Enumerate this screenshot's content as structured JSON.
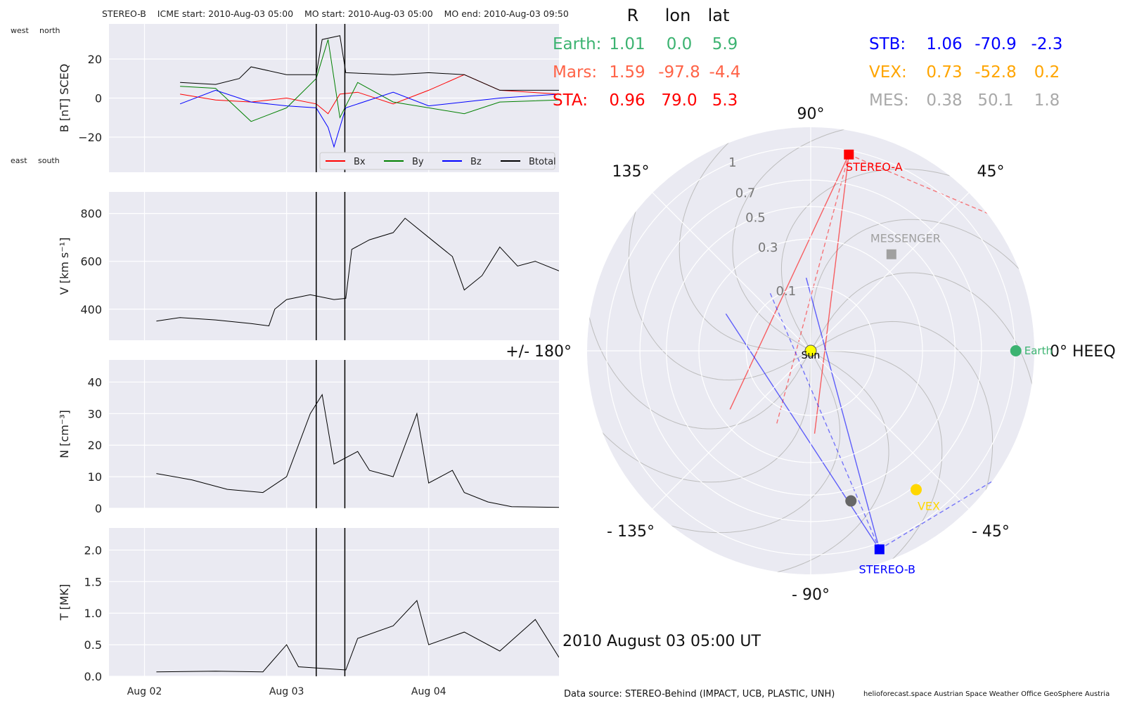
{
  "header": {
    "spacecraft": "STEREO-B",
    "icme_start": "ICME start: 2010-Aug-03 05:00",
    "mo_start": "MO start: 2010-Aug-03 05:00",
    "mo_end": "MO end: 2010-Aug-03 09:50"
  },
  "b_panel_labels": {
    "west": "west",
    "north": "north",
    "east": "east",
    "south": "south"
  },
  "position_table": {
    "columns": [
      "R",
      "lon",
      "lat"
    ],
    "rows": [
      {
        "name": "Earth:",
        "r": "1.01",
        "lon": "0.0",
        "lat": "5.9",
        "color": "#3cb371"
      },
      {
        "name": "Mars:",
        "r": "1.59",
        "lon": "-97.8",
        "lat": "-4.4",
        "color": "#ff6347"
      },
      {
        "name": "STA:",
        "r": "0.96",
        "lon": "79.0",
        "lat": "5.3",
        "color": "#ff0000"
      },
      {
        "name": "STB:",
        "r": "1.06",
        "lon": "-70.9",
        "lat": "-2.3",
        "color": "#0000ff"
      },
      {
        "name": "VEX:",
        "r": "0.73",
        "lon": "-52.8",
        "lat": "0.2",
        "color": "#ffa500"
      },
      {
        "name": "MES:",
        "r": "0.38",
        "lon": "50.1",
        "lat": "1.8",
        "color": "#a9a9a9"
      }
    ]
  },
  "date_label": "2010 August 03  05:00 UT",
  "footer": {
    "source": "Data source: STEREO-Behind (IMPACT, UCB, PLASTIC, UNH)",
    "credits": "helioforecast.space   Austrian Space Weather Office   GeoSphere Austria"
  },
  "chart_data": [
    {
      "type": "line",
      "ylabel": "B [nT] SCEQ",
      "xlim": [
        "2010-08-01 18:00",
        "2010-08-04 22:00"
      ],
      "ylim": [
        -38,
        38
      ],
      "yticks": [
        "20",
        "0",
        "−20"
      ],
      "ytick_values": [
        20,
        0,
        -20
      ],
      "legend": "bottom-right",
      "series": [
        {
          "name": "Bx",
          "color": "#ff0000",
          "points": [
            [
              "2010-08-02 06:00",
              2
            ],
            [
              "2010-08-02 12:00",
              -1
            ],
            [
              "2010-08-02 18:00",
              -2
            ],
            [
              "2010-08-03 00:00",
              0
            ],
            [
              "2010-08-03 05:00",
              -3
            ],
            [
              "2010-08-03 07:00",
              -8
            ],
            [
              "2010-08-03 09:00",
              2
            ],
            [
              "2010-08-03 12:00",
              3
            ],
            [
              "2010-08-03 18:00",
              -3
            ],
            [
              "2010-08-04 00:00",
              4
            ],
            [
              "2010-08-04 06:00",
              12
            ],
            [
              "2010-08-04 12:00",
              4
            ],
            [
              "2010-08-04 22:00",
              2
            ]
          ]
        },
        {
          "name": "By",
          "color": "#008000",
          "points": [
            [
              "2010-08-02 06:00",
              6
            ],
            [
              "2010-08-02 12:00",
              5
            ],
            [
              "2010-08-02 18:00",
              -12
            ],
            [
              "2010-08-03 00:00",
              -5
            ],
            [
              "2010-08-03 05:00",
              10
            ],
            [
              "2010-08-03 07:00",
              30
            ],
            [
              "2010-08-03 09:00",
              -10
            ],
            [
              "2010-08-03 12:00",
              8
            ],
            [
              "2010-08-03 18:00",
              -2
            ],
            [
              "2010-08-04 00:00",
              -5
            ],
            [
              "2010-08-04 06:00",
              -8
            ],
            [
              "2010-08-04 12:00",
              -2
            ],
            [
              "2010-08-04 22:00",
              -1
            ]
          ]
        },
        {
          "name": "Bz",
          "color": "#0000ff",
          "points": [
            [
              "2010-08-02 06:00",
              -3
            ],
            [
              "2010-08-02 12:00",
              4
            ],
            [
              "2010-08-02 18:00",
              -2
            ],
            [
              "2010-08-03 00:00",
              -4
            ],
            [
              "2010-08-03 05:00",
              -5
            ],
            [
              "2010-08-03 07:00",
              -15
            ],
            [
              "2010-08-03 08:00",
              -25
            ],
            [
              "2010-08-03 10:00",
              -5
            ],
            [
              "2010-08-03 18:00",
              3
            ],
            [
              "2010-08-04 00:00",
              -4
            ],
            [
              "2010-08-04 12:00",
              0
            ],
            [
              "2010-08-04 22:00",
              2
            ]
          ]
        },
        {
          "name": "Btotal",
          "color": "#000000",
          "points": [
            [
              "2010-08-02 06:00",
              8
            ],
            [
              "2010-08-02 12:00",
              7
            ],
            [
              "2010-08-02 16:00",
              10
            ],
            [
              "2010-08-02 18:00",
              16
            ],
            [
              "2010-08-03 00:00",
              12
            ],
            [
              "2010-08-03 05:00",
              12
            ],
            [
              "2010-08-03 06:00",
              30
            ],
            [
              "2010-08-03 09:00",
              32
            ],
            [
              "2010-08-03 10:00",
              13
            ],
            [
              "2010-08-03 18:00",
              12
            ],
            [
              "2010-08-04 00:00",
              13
            ],
            [
              "2010-08-04 06:00",
              12
            ],
            [
              "2010-08-04 12:00",
              4
            ],
            [
              "2010-08-04 22:00",
              4
            ]
          ]
        }
      ]
    },
    {
      "type": "line",
      "ylabel": "V [km s⁻¹]",
      "xlim": [
        "2010-08-01 18:00",
        "2010-08-04 22:00"
      ],
      "ylim": [
        270,
        890
      ],
      "yticks": [
        "800",
        "600",
        "400"
      ],
      "ytick_values": [
        800,
        600,
        400
      ],
      "series": [
        {
          "name": "",
          "color": "#000000",
          "points": [
            [
              "2010-08-02 02:00",
              350
            ],
            [
              "2010-08-02 06:00",
              365
            ],
            [
              "2010-08-02 12:00",
              355
            ],
            [
              "2010-08-02 18:00",
              340
            ],
            [
              "2010-08-02 21:00",
              330
            ],
            [
              "2010-08-02 22:00",
              400
            ],
            [
              "2010-08-03 00:00",
              440
            ],
            [
              "2010-08-03 04:00",
              460
            ],
            [
              "2010-08-03 08:00",
              440
            ],
            [
              "2010-08-03 10:00",
              445
            ],
            [
              "2010-08-03 11:00",
              650
            ],
            [
              "2010-08-03 14:00",
              690
            ],
            [
              "2010-08-03 18:00",
              720
            ],
            [
              "2010-08-03 20:00",
              780
            ],
            [
              "2010-08-04 00:00",
              700
            ],
            [
              "2010-08-04 04:00",
              620
            ],
            [
              "2010-08-04 06:00",
              480
            ],
            [
              "2010-08-04 09:00",
              540
            ],
            [
              "2010-08-04 12:00",
              660
            ],
            [
              "2010-08-04 15:00",
              580
            ],
            [
              "2010-08-04 18:00",
              600
            ],
            [
              "2010-08-04 22:00",
              560
            ]
          ]
        }
      ]
    },
    {
      "type": "line",
      "ylabel": "N [cm⁻³]",
      "xlim": [
        "2010-08-01 18:00",
        "2010-08-04 22:00"
      ],
      "ylim": [
        0,
        47
      ],
      "yticks": [
        "40",
        "30",
        "20",
        "10",
        "0"
      ],
      "ytick_values": [
        40,
        30,
        20,
        10,
        0
      ],
      "series": [
        {
          "name": "",
          "color": "#000000",
          "points": [
            [
              "2010-08-02 02:00",
              11
            ],
            [
              "2010-08-02 08:00",
              9
            ],
            [
              "2010-08-02 14:00",
              6
            ],
            [
              "2010-08-02 20:00",
              5
            ],
            [
              "2010-08-03 00:00",
              10
            ],
            [
              "2010-08-03 04:00",
              30
            ],
            [
              "2010-08-03 06:00",
              36
            ],
            [
              "2010-08-03 08:00",
              14
            ],
            [
              "2010-08-03 12:00",
              18
            ],
            [
              "2010-08-03 14:00",
              12
            ],
            [
              "2010-08-03 18:00",
              10
            ],
            [
              "2010-08-03 22:00",
              30
            ],
            [
              "2010-08-04 00:00",
              8
            ],
            [
              "2010-08-04 04:00",
              12
            ],
            [
              "2010-08-04 06:00",
              5
            ],
            [
              "2010-08-04 10:00",
              2
            ],
            [
              "2010-08-04 14:00",
              0.5
            ],
            [
              "2010-08-04 22:00",
              0.3
            ]
          ]
        }
      ]
    },
    {
      "type": "line",
      "ylabel": "T [MK]",
      "xlim": [
        "2010-08-01 18:00",
        "2010-08-04 22:00"
      ],
      "ylim": [
        0,
        2.35
      ],
      "yticks": [
        "2.0",
        "1.5",
        "1.0",
        "0.5",
        "0.0"
      ],
      "ytick_values": [
        2.0,
        1.5,
        1.0,
        0.5,
        0.0
      ],
      "xticks": [
        "Aug 02",
        "Aug 03",
        "Aug 04"
      ],
      "xtick_values": [
        "2010-08-02 00:00",
        "2010-08-03 00:00",
        "2010-08-04 00:00"
      ],
      "series": [
        {
          "name": "",
          "color": "#000000",
          "points": [
            [
              "2010-08-02 02:00",
              0.07
            ],
            [
              "2010-08-02 12:00",
              0.08
            ],
            [
              "2010-08-02 20:00",
              0.07
            ],
            [
              "2010-08-03 00:00",
              0.5
            ],
            [
              "2010-08-03 02:00",
              0.15
            ],
            [
              "2010-08-03 10:00",
              0.1
            ],
            [
              "2010-08-03 12:00",
              0.6
            ],
            [
              "2010-08-03 18:00",
              0.8
            ],
            [
              "2010-08-03 22:00",
              1.2
            ],
            [
              "2010-08-04 00:00",
              0.5
            ],
            [
              "2010-08-04 06:00",
              0.7
            ],
            [
              "2010-08-04 12:00",
              0.4
            ],
            [
              "2010-08-04 18:00",
              0.9
            ],
            [
              "2010-08-04 22:00",
              0.3
            ]
          ]
        }
      ]
    },
    {
      "type": "scatter",
      "frame": "HEEQ polar",
      "rmax": 1.2,
      "radial_ticks": [
        0.1,
        0.3,
        0.5,
        0.7,
        1.0
      ],
      "angle_labels": [
        {
          "angle": 0,
          "text": "0° HEEQ"
        },
        {
          "angle": 45,
          "text": "45°"
        },
        {
          "angle": 90,
          "text": "90°"
        },
        {
          "angle": 135,
          "text": "135°"
        },
        {
          "angle": 180,
          "text": "+/- 180°"
        },
        {
          "angle": -135,
          "text": "- 135°"
        },
        {
          "angle": -90,
          "text": "- 90°"
        },
        {
          "angle": -45,
          "text": "- 45°"
        }
      ],
      "bodies": [
        {
          "name": "Sun",
          "r": 0,
          "lon": 0,
          "color": "#ffff00",
          "marker": "circle"
        },
        {
          "name": "Earth",
          "r": 1.01,
          "lon": 0.0,
          "color": "#3cb371",
          "marker": "circle"
        },
        {
          "name": "",
          "r": 0.58,
          "lon": -75,
          "color": "#666666",
          "marker": "circle"
        },
        {
          "name": "VEX",
          "r": 0.73,
          "lon": -52.8,
          "color": "#ffd700",
          "marker": "circle"
        },
        {
          "name": "MESSENGER",
          "r": 0.38,
          "lon": 50.1,
          "color": "#a0a0a0",
          "marker": "square"
        },
        {
          "name": "STEREO-A",
          "r": 0.96,
          "lon": 79.0,
          "color": "#ff0000",
          "marker": "square"
        },
        {
          "name": "STEREO-B",
          "r": 1.06,
          "lon": -70.9,
          "color": "#0000ff",
          "marker": "square"
        }
      ]
    }
  ]
}
